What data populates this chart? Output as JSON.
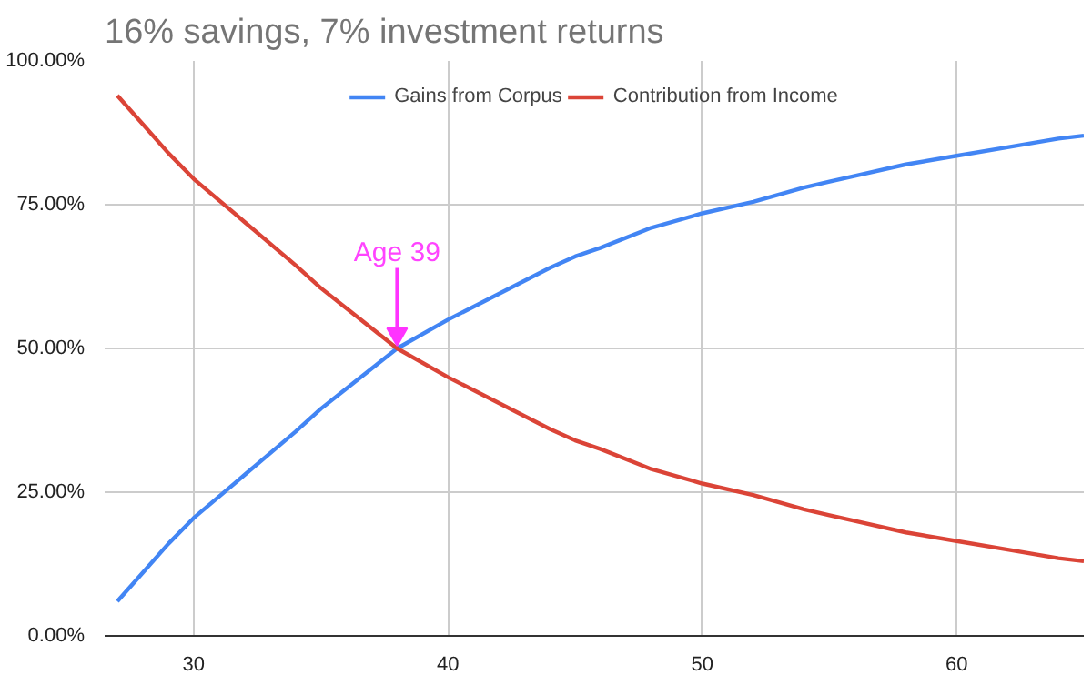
{
  "chart_data": {
    "type": "line",
    "title": "16% savings, 7% investment returns",
    "x": [
      27,
      28,
      29,
      30,
      32,
      34,
      35,
      36,
      38,
      40,
      42,
      44,
      45,
      46,
      48,
      50,
      52,
      54,
      55,
      56,
      58,
      60,
      62,
      64,
      65
    ],
    "series": [
      {
        "name": "Gains from Corpus",
        "color": "#4285f4",
        "values": [
          6,
          11,
          16,
          20.5,
          28,
          35.5,
          39.5,
          43,
          50,
          55,
          59.5,
          64,
          66,
          67.5,
          71,
          73.5,
          75.5,
          78,
          79,
          80,
          82,
          83.5,
          85,
          86.5,
          87
        ]
      },
      {
        "name": "Contribution from Income",
        "color": "#db4437",
        "values": [
          94,
          89,
          84,
          79.5,
          72,
          64.5,
          60.5,
          57,
          50,
          45,
          40.5,
          36,
          34,
          32.5,
          29,
          26.5,
          24.5,
          22,
          21,
          20,
          18,
          16.5,
          15,
          13.5,
          13
        ]
      }
    ],
    "xlim": [
      26.5,
      65
    ],
    "xticks": [
      30,
      40,
      50,
      60
    ],
    "ylim": [
      0,
      100
    ],
    "yticks": [
      {
        "value": 0,
        "label": "0.00%"
      },
      {
        "value": 25,
        "label": "25.00%"
      },
      {
        "value": 50,
        "label": "50.00%"
      },
      {
        "value": 75,
        "label": "75.00%"
      },
      {
        "value": 100,
        "label": "100.00%"
      }
    ],
    "annotations": [
      {
        "text": "Age 39",
        "x": 38,
        "y": 50
      }
    ],
    "grid": true,
    "legend": "top",
    "marker": "none",
    "line_style": "solid"
  }
}
